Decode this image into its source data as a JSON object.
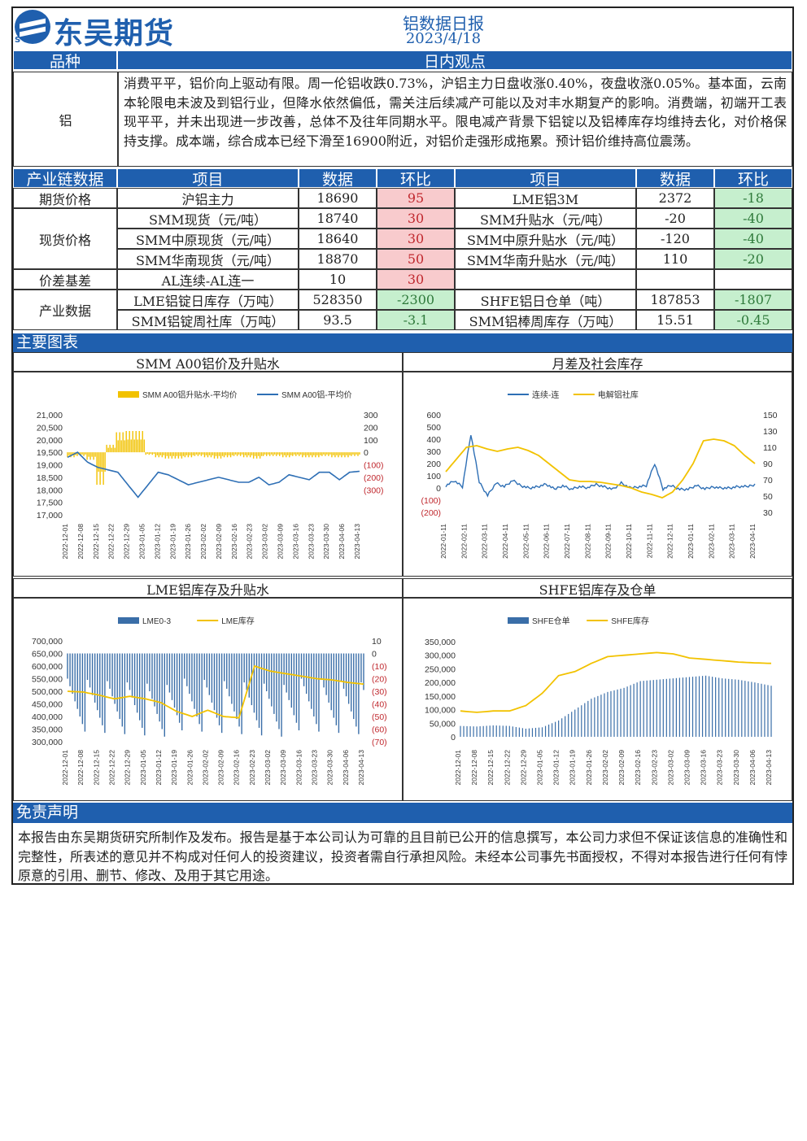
{
  "header": {
    "brand": "东吴期货",
    "logo_text": "SCF",
    "title": "铝数据日报",
    "date": "2023/4/18"
  },
  "opinion": {
    "col_variety": "品种",
    "col_view": "日内观点",
    "variety": "铝",
    "text": "消费平平，铝价向上驱动有限。周一伦铝收跌0.73%，沪铝主力日盘收涨0.40%，夜盘收涨0.05%。基本面，云南本轮限电未波及到铝行业，但降水依然偏低，需关注后续减产可能以及对丰水期复产的影响。消费端，初端开工表现平平，并未出现进一步改善，总体不及往年同期水平。限电减产背景下铝锭以及铝棒库存均维持去化，对价格保持支撑。成本端，综合成本已经下滑至16900附近，对铝价走强形成拖累。预计铝价维持高位震荡。"
  },
  "table": {
    "headers": [
      "产业链数据",
      "项目",
      "数据",
      "环比",
      "项目",
      "数据",
      "环比"
    ],
    "groups": [
      "期货价格",
      "现货价格",
      "价差基差",
      "产业数据"
    ],
    "rows": [
      [
        "沪铝主力",
        "18690",
        "95",
        "LME铝3M",
        "2372",
        "-18"
      ],
      [
        "SMM现货（元/吨）",
        "18740",
        "30",
        "SMM升贴水（元/吨）",
        "-20",
        "-40"
      ],
      [
        "SMM中原现货（元/吨）",
        "18640",
        "30",
        "SMM中原升贴水（元/吨）",
        "-120",
        "-40"
      ],
      [
        "SMM华南现货（元/吨）",
        "18870",
        "50",
        "SMM华南升贴水（元/吨）",
        "110",
        "-20"
      ],
      [
        "AL连续-AL连一",
        "10",
        "30",
        "",
        "",
        ""
      ],
      [
        "LME铝锭日库存（万吨）",
        "528350",
        "-2300",
        "SHFE铝日仓单（吨）",
        "187853",
        "-1807"
      ],
      [
        "SMM铝锭周社库（万吨）",
        "93.5",
        "-3.1",
        "SMM铝棒周库存（万吨）",
        "15.51",
        "-0.45"
      ]
    ]
  },
  "section_charts": "主要图表",
  "charts": {
    "c1": {
      "title": "SMM A00铝价及升贴水",
      "legend": [
        "SMM A00铝升贴水-平均价",
        "SMM A00铝-平均价"
      ],
      "yl": [
        "21,000",
        "20,500",
        "20,000",
        "19,500",
        "19,000",
        "18,500",
        "18,000",
        "17,500",
        "17,000"
      ],
      "yr": [
        "300",
        "200",
        "100",
        "0",
        "(100)",
        "(200)",
        "(300)"
      ],
      "x": [
        "2022-12-01",
        "2022-12-08",
        "2022-12-15",
        "2022-12-22",
        "2022-12-29",
        "2023-01-05",
        "2023-01-12",
        "2023-01-19",
        "2023-01-26",
        "2023-02-02",
        "2023-02-09",
        "2023-02-16",
        "2023-02-23",
        "2023-03-02",
        "2023-03-09",
        "2023-03-16",
        "2023-03-23",
        "2023-03-30",
        "2023-04-06",
        "2023-04-13"
      ],
      "colors": [
        "#f2c200",
        "#2e6fb5"
      ]
    },
    "c2": {
      "title": "月差及社会库存",
      "legend": [
        "连续-连",
        "电解铝社库"
      ],
      "yl": [
        "600",
        "500",
        "400",
        "300",
        "200",
        "100",
        "0",
        "(100)",
        "(200)"
      ],
      "yr": [
        "150",
        "130",
        "110",
        "90",
        "70",
        "50",
        "30"
      ],
      "x": [
        "2022-01-11",
        "2022-02-11",
        "2022-03-11",
        "2022-04-11",
        "2022-05-11",
        "2022-06-11",
        "2022-07-11",
        "2022-08-11",
        "2022-09-11",
        "2022-10-11",
        "2022-11-11",
        "2022-12-11",
        "2023-01-11",
        "2023-02-11",
        "2023-03-11",
        "2023-04-11"
      ],
      "colors": [
        "#2e6fb5",
        "#f2c200"
      ]
    },
    "c3": {
      "title": "LME铝库存及升贴水",
      "legend": [
        "LME0-3",
        "LME库存"
      ],
      "yl": [
        "700,000",
        "650,000",
        "600,000",
        "550,000",
        "500,000",
        "450,000",
        "400,000",
        "350,000",
        "300,000"
      ],
      "yr": [
        "10",
        "0",
        "(10)",
        "(20)",
        "(30)",
        "(40)",
        "(50)",
        "(60)",
        "(70)"
      ],
      "x": [
        "2022-12-01",
        "2022-12-08",
        "2022-12-15",
        "2022-12-22",
        "2022-12-29",
        "2023-01-05",
        "2023-01-12",
        "2023-01-19",
        "2023-01-26",
        "2023-02-02",
        "2023-02-09",
        "2023-02-16",
        "2023-02-23",
        "2023-03-02",
        "2023-03-09",
        "2023-03-16",
        "2023-03-23",
        "2023-03-30",
        "2023-04-06",
        "2023-04-13"
      ],
      "colors": [
        "#3a6ea8",
        "#f2c200"
      ]
    },
    "c4": {
      "title": "SHFE铝库存及仓单",
      "legend": [
        "SHFE仓单",
        "SHFE库存"
      ],
      "yl": [
        "350,000",
        "300,000",
        "250,000",
        "200,000",
        "150,000",
        "100,000",
        "50,000",
        "0"
      ],
      "x": [
        "2022-12-01",
        "2022-12-08",
        "2022-12-15",
        "2022-12-22",
        "2022-12-29",
        "2023-01-05",
        "2023-01-12",
        "2023-01-19",
        "2023-01-26",
        "2023-02-02",
        "2023-02-09",
        "2023-02-16",
        "2023-02-23",
        "2023-03-02",
        "2023-03-09",
        "2023-03-16",
        "2023-03-23",
        "2023-03-30",
        "2023-04-06",
        "2023-04-13"
      ],
      "colors": [
        "#3a6ea8",
        "#f2c200"
      ]
    }
  },
  "chart_data": [
    {
      "type": "bar",
      "title": "SMM A00铝价及升贴水",
      "series": [
        {
          "name": "SMM A00铝升贴水-平均价",
          "type": "bar",
          "values": [
            -40,
            -30,
            -60,
            -260,
            60,
            160,
            170,
            170,
            -20,
            -40,
            -50,
            -50,
            -40,
            -30,
            -40,
            -50,
            -40,
            -30,
            -40,
            -50,
            -30,
            -30,
            -40,
            -30,
            -40,
            -40,
            -30,
            -40,
            -40,
            -30
          ]
        },
        {
          "name": "SMM A00铝-平均价",
          "type": "line",
          "values": [
            19300,
            19500,
            19100,
            18900,
            18800,
            18700,
            18200,
            17700,
            18200,
            18700,
            18600,
            18400,
            18200,
            18300,
            18400,
            18500,
            18400,
            18300,
            18300,
            18500,
            18200,
            18300,
            18600,
            18500,
            18400,
            18700,
            18700,
            18400,
            18700,
            18740
          ]
        }
      ],
      "ylim": [
        17000,
        21000
      ],
      "y2lim": [
        -300,
        300
      ]
    },
    {
      "type": "line",
      "title": "月差及社会库存",
      "series": [
        {
          "name": "连续-连",
          "values": [
            20,
            60,
            10,
            440,
            50,
            -60,
            40,
            10,
            60,
            20,
            0,
            10,
            30,
            -10,
            20,
            -10,
            10,
            0,
            30,
            10,
            -10,
            40,
            0,
            10,
            20,
            200,
            -10,
            20,
            -10,
            -10,
            20,
            -10,
            10,
            0,
            0,
            10,
            10,
            30
          ]
        },
        {
          "name": "电解铝社库",
          "values": [
            80,
            95,
            110,
            112,
            108,
            105,
            108,
            110,
            106,
            100,
            90,
            80,
            70,
            68,
            68,
            67,
            65,
            63,
            60,
            55,
            52,
            48,
            55,
            70,
            90,
            118,
            120,
            118,
            112,
            100,
            90
          ]
        }
      ],
      "ylim": [
        -200,
        600
      ],
      "y2lim": [
        30,
        150
      ]
    },
    {
      "type": "bar",
      "title": "LME铝库存及升贴水",
      "series": [
        {
          "name": "LME0-3",
          "type": "bar"
        },
        {
          "name": "LME库存",
          "values": [
            500000,
            497000,
            485000,
            470000,
            480000,
            470000,
            455000,
            420000,
            400000,
            425000,
            400000,
            395000,
            600000,
            580000,
            570000,
            560000,
            550000,
            545000,
            535000,
            528350
          ]
        }
      ],
      "ylim": [
        300000,
        700000
      ],
      "y2lim": [
        -70,
        10
      ]
    },
    {
      "type": "bar",
      "title": "SHFE铝库存及仓单",
      "series": [
        {
          "name": "SHFE仓单",
          "type": "bar",
          "values": [
            40000,
            38000,
            42000,
            40000,
            30000,
            35000,
            60000,
            100000,
            140000,
            165000,
            180000,
            205000,
            210000,
            215000,
            220000,
            225000,
            215000,
            210000,
            200000,
            187853
          ]
        },
        {
          "name": "SHFE库存",
          "values": [
            95000,
            90000,
            95000,
            95000,
            115000,
            160000,
            225000,
            240000,
            270000,
            295000,
            300000,
            305000,
            310000,
            305000,
            290000,
            285000,
            280000,
            275000,
            272000,
            270000
          ]
        }
      ],
      "ylim": [
        0,
        350000
      ]
    }
  ],
  "disclaimer": {
    "heading": "免责声明",
    "text": "本报告由东吴期货研究所制作及发布。报告是基于本公司认为可靠的且目前已公开的信息撰写，本公司力求但不保证该信息的准确性和完整性，所表述的意见并不构成对任何人的投资建议，投资者需自行承担风险。未经本公司事先书面授权，不得对本报告进行任何有悖原意的引用、删节、修改、及用于其它用途。"
  }
}
